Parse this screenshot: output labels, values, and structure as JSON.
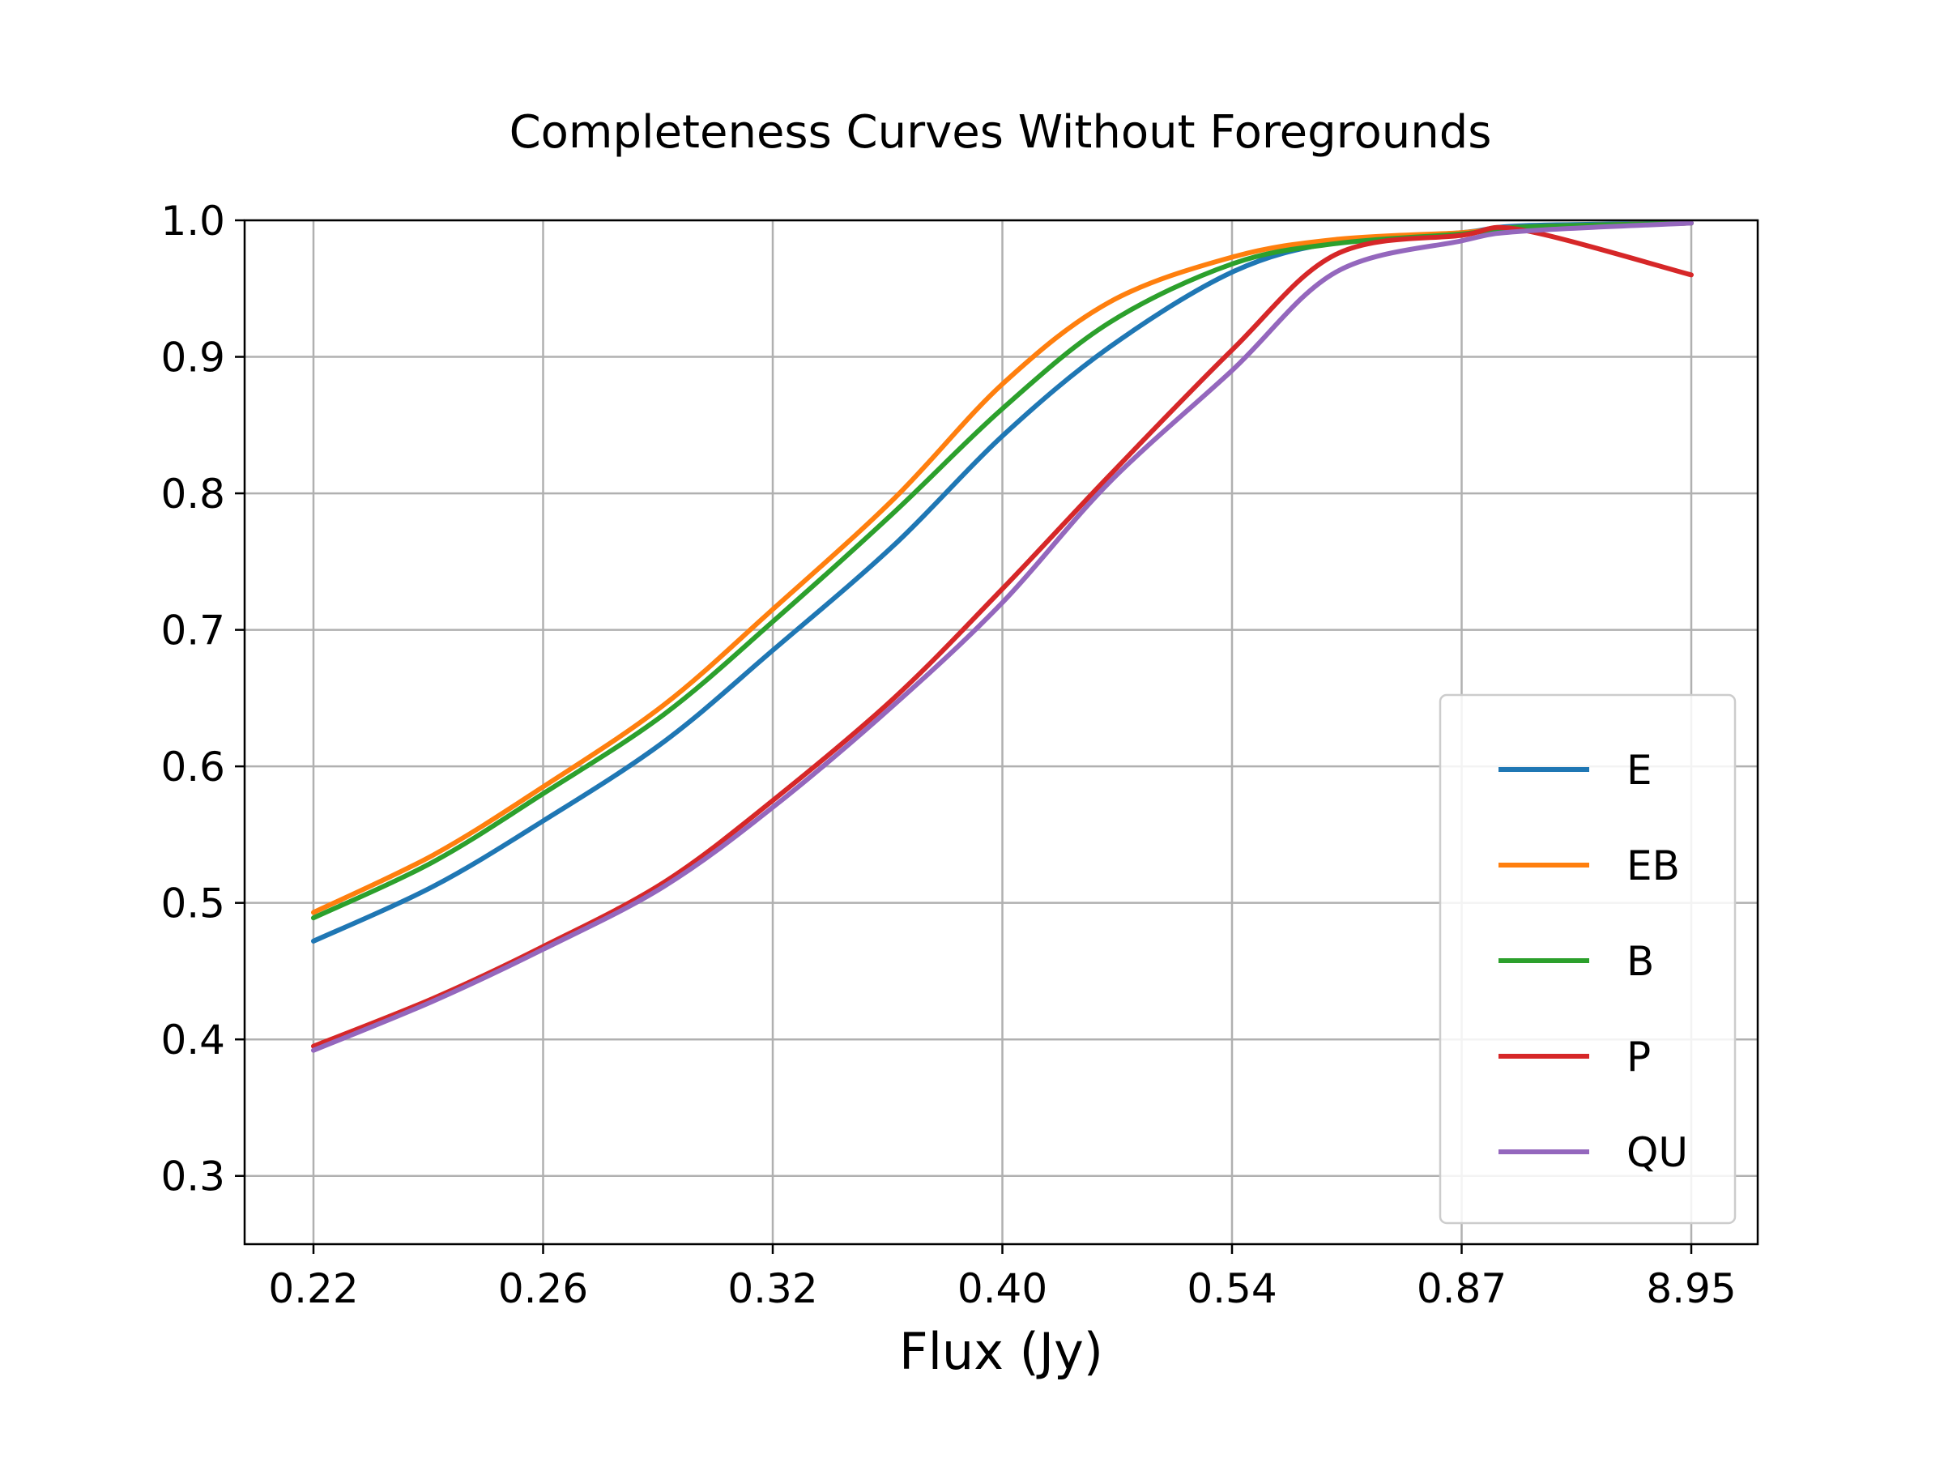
{
  "chart_data": {
    "type": "line",
    "title": "Completeness Curves Without Foregrounds",
    "xlabel": "Flux (Jy)",
    "ylabel": "",
    "x_axis_note": "non-uniform flux axis; tick labels at evenly spaced positions",
    "x_ticks": [
      "0.22",
      "0.26",
      "0.32",
      "0.40",
      "0.54",
      "0.87",
      "8.95"
    ],
    "y_ticks": [
      "0.3",
      "0.4",
      "0.5",
      "0.6",
      "0.7",
      "0.8",
      "0.9",
      "1.0"
    ],
    "ylim": [
      0.25,
      1.0
    ],
    "grid": true,
    "legend_position": "lower-right",
    "x": [
      "0.22",
      "0.24",
      "0.26",
      "0.29",
      "0.32",
      "0.36",
      "0.40",
      "0.46",
      "0.54",
      "0.67",
      "0.87",
      "1.6",
      "8.95"
    ],
    "series": [
      {
        "name": "E",
        "color": "#1f77b4",
        "values": [
          0.472,
          0.512,
          0.56,
          0.618,
          0.685,
          0.762,
          0.842,
          0.907,
          0.962,
          0.984,
          0.991,
          0.996,
          0.998
        ]
      },
      {
        "name": "EB",
        "color": "#ff7f0e",
        "values": [
          0.493,
          0.535,
          0.585,
          0.645,
          0.715,
          0.796,
          0.88,
          0.94,
          0.973,
          0.986,
          0.991,
          0.995,
          0.998
        ]
      },
      {
        "name": "B",
        "color": "#2ca02c",
        "values": [
          0.489,
          0.53,
          0.58,
          0.638,
          0.706,
          0.786,
          0.862,
          0.925,
          0.968,
          0.983,
          0.99,
          0.995,
          0.998
        ]
      },
      {
        "name": "P",
        "color": "#d62728",
        "values": [
          0.395,
          0.43,
          0.468,
          0.515,
          0.575,
          0.65,
          0.73,
          0.813,
          0.905,
          0.975,
          0.989,
          0.993,
          0.96
        ]
      },
      {
        "name": "QU",
        "color": "#9467bd",
        "values": [
          0.392,
          0.428,
          0.466,
          0.512,
          0.57,
          0.645,
          0.72,
          0.808,
          0.89,
          0.962,
          0.985,
          0.992,
          0.998
        ]
      }
    ]
  }
}
